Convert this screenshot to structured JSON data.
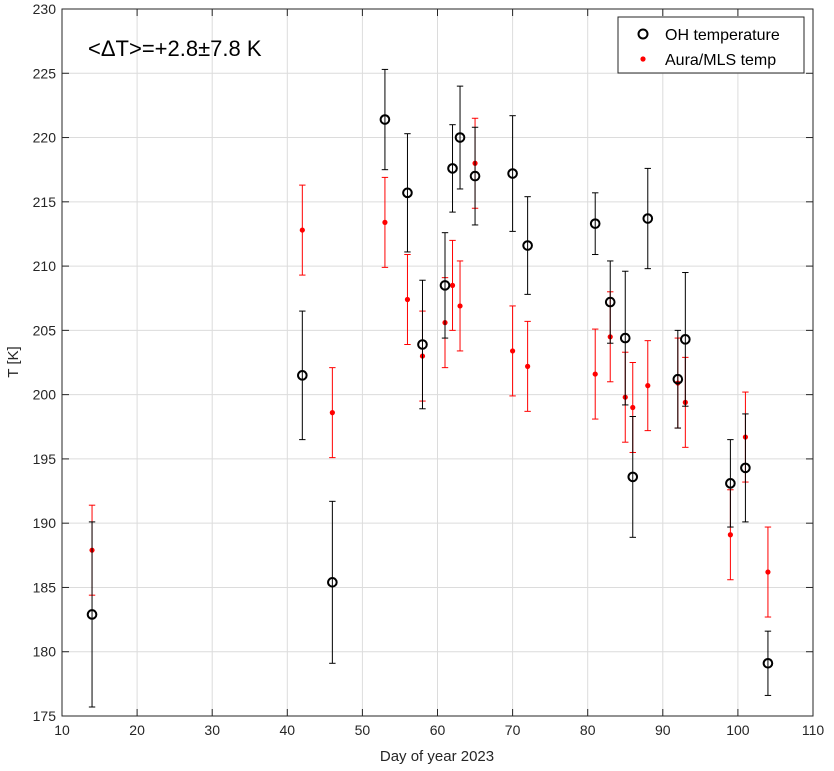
{
  "chart_data": {
    "type": "scatter",
    "xlabel": "Day of year 2023",
    "ylabel": "T [K]",
    "xlim": [
      10,
      110
    ],
    "ylim": [
      175,
      230
    ],
    "xticks": [
      10,
      20,
      30,
      40,
      50,
      60,
      70,
      80,
      90,
      100,
      110
    ],
    "yticks": [
      175,
      180,
      185,
      190,
      195,
      200,
      205,
      210,
      215,
      220,
      225,
      230
    ],
    "grid": true,
    "legend_position": "top-right",
    "annotation": "<ΔT>=+2.8±7.8 K",
    "series": [
      {
        "name": "OH temperature",
        "color": "#000000",
        "marker": "open-circle",
        "x": [
          14,
          42,
          46,
          53,
          56,
          58,
          61,
          62,
          63,
          65,
          70,
          72,
          81,
          83,
          85,
          86,
          88,
          92,
          93,
          99,
          101,
          104
        ],
        "y": [
          182.9,
          201.5,
          185.4,
          221.4,
          215.7,
          203.9,
          208.5,
          217.6,
          220.0,
          217.0,
          217.2,
          211.6,
          213.3,
          207.2,
          204.4,
          193.6,
          213.7,
          201.2,
          204.3,
          193.1,
          194.3,
          179.1
        ],
        "yerr": [
          7.2,
          5.0,
          6.3,
          3.9,
          4.6,
          5.0,
          4.1,
          3.4,
          4.0,
          3.8,
          4.5,
          3.8,
          2.4,
          3.2,
          5.2,
          4.7,
          3.9,
          3.8,
          5.2,
          3.4,
          4.2,
          2.5
        ]
      },
      {
        "name": "Aura/MLS temp",
        "color": "#ff0000",
        "marker": "filled-dot",
        "x": [
          14,
          42,
          46,
          53,
          56,
          58,
          61,
          62,
          63,
          65,
          70,
          72,
          81,
          83,
          85,
          86,
          88,
          92,
          93,
          99,
          101,
          104
        ],
        "y": [
          187.9,
          212.8,
          198.6,
          213.4,
          207.4,
          203.0,
          205.6,
          208.5,
          206.9,
          218.0,
          203.4,
          202.2,
          201.6,
          204.5,
          199.8,
          199.0,
          200.7,
          200.9,
          199.4,
          189.1,
          196.7,
          186.2
        ],
        "yerr": [
          3.5,
          3.5,
          3.5,
          3.5,
          3.5,
          3.5,
          3.5,
          3.5,
          3.5,
          3.5,
          3.5,
          3.5,
          3.5,
          3.5,
          3.5,
          3.5,
          3.5,
          3.5,
          3.5,
          3.5,
          3.5,
          3.5
        ]
      }
    ]
  }
}
